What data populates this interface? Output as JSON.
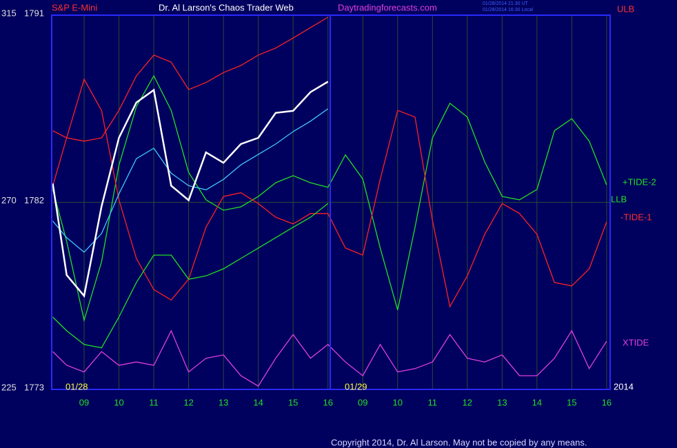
{
  "chart_data": {
    "type": "line",
    "title": "Dr. Al Larson's Chaos Trader Web",
    "instrument": "S&P E-Mini",
    "website": "Daytradingforecasts.com",
    "timestamps": [
      "01/28/2014 21:30 UT",
      "01/28/2014 16:30 Local"
    ],
    "dates": [
      "01/28",
      "01/29",
      "2014"
    ],
    "copyright": "Copyright 2014, Dr. Al Larson. May not be copied by any means.",
    "x": [
      8.1,
      8.5,
      9,
      9.5,
      10,
      10.5,
      11,
      11.5,
      12,
      12.5,
      13,
      13.5,
      14,
      14.5,
      15,
      15.5,
      16,
      16.5,
      17,
      17.5,
      18,
      18.5,
      19,
      19.5,
      20,
      20.5,
      21,
      21.5,
      22,
      22.5,
      23,
      23.5,
      24
    ],
    "xlim": [
      8.07,
      24.1
    ],
    "xticks": [
      {
        "value": 9,
        "label": "09"
      },
      10,
      11,
      12,
      13,
      14,
      15,
      16,
      {
        "value": 17,
        "label": "09"
      },
      {
        "value": 18,
        "label": "10"
      },
      {
        "value": 19,
        "label": "11"
      },
      {
        "value": 20,
        "label": "12"
      },
      {
        "value": 21,
        "label": "13"
      },
      {
        "value": 22,
        "label": "14"
      },
      {
        "value": 23,
        "label": "15"
      },
      {
        "value": 24,
        "label": "16"
      }
    ],
    "ylim": [
      225,
      315
    ],
    "yticks": [
      225,
      270,
      315
    ],
    "y2lim": [
      1773,
      1791
    ],
    "y2ticks": [
      1773,
      1782,
      1791
    ],
    "grid": true,
    "series": [
      {
        "name": "+TIDE-2",
        "color": "#22e022",
        "values": [
          273.1,
          260.6,
          241.6,
          255.7,
          278.9,
          293.0,
          300.4,
          292.1,
          277.2,
          270.6,
          268.1,
          268.9,
          271.4,
          274.7,
          276.4,
          274.7,
          273.6,
          281.4,
          275.6,
          259.0,
          244.1,
          264.0,
          285.5,
          293.8,
          290.5,
          279.7,
          271.4,
          270.6,
          273.1,
          287.2,
          290.1,
          284.7,
          274.2
        ]
      },
      {
        "name": "-TIDE-1",
        "color": "#ff2222",
        "values": [
          273.9,
          285.5,
          299.6,
          292.1,
          270.6,
          256.5,
          249.0,
          246.5,
          251.5,
          264.0,
          271.4,
          272.3,
          269.7,
          266.4,
          264.8,
          267.3,
          267.3,
          259.0,
          257.3,
          275.5,
          292.1,
          290.5,
          265.6,
          244.9,
          252.3,
          262.3,
          269.7,
          267.3,
          262.3,
          250.7,
          249.9,
          254.0,
          265.3
        ]
      },
      {
        "name": "XTIDE",
        "color": "#e040e0",
        "values": [
          234.1,
          230.8,
          229.2,
          234.1,
          230.8,
          231.6,
          230.8,
          239.1,
          229.2,
          232.5,
          233.3,
          228.3,
          225.8,
          232.5,
          238.2,
          232.5,
          235.8,
          231.6,
          228.3,
          235.8,
          229.2,
          230.0,
          231.6,
          238.2,
          232.5,
          231.6,
          233.3,
          228.3,
          228.3,
          232.5,
          239.1,
          230.0,
          236.6
        ]
      },
      {
        "name": "ULB",
        "color": "#ff2222",
        "values": [
          287.2,
          285.5,
          284.7,
          285.5,
          292.1,
          300.4,
          305.4,
          303.7,
          297.1,
          298.8,
          301.2,
          302.9,
          305.4,
          307.1,
          309.5,
          312.0,
          314.5,
          null,
          null,
          null,
          null,
          null,
          null,
          null,
          null,
          null,
          null,
          null,
          null,
          null,
          null,
          null,
          null
        ]
      },
      {
        "name": "LLB",
        "color": "#22e022",
        "values": [
          242.4,
          239.1,
          235.8,
          235.0,
          242.4,
          250.7,
          257.3,
          257.3,
          251.5,
          252.3,
          254.0,
          256.5,
          259.0,
          261.5,
          264.0,
          266.4,
          269.7,
          null,
          null,
          null,
          null,
          null,
          null,
          null,
          null,
          null,
          null,
          null,
          null,
          null,
          null,
          null,
          null
        ]
      },
      {
        "color": "#40c8ff",
        "axis": "y2",
        "values": [
          1781.1,
          1780.3,
          1779.6,
          1780.5,
          1782.4,
          1784.1,
          1784.6,
          1783.4,
          1782.8,
          1782.6,
          1783.1,
          1783.8,
          1784.3,
          1784.8,
          1785.4,
          1785.9,
          1786.5,
          null,
          null,
          null,
          null,
          null,
          null,
          null,
          null,
          null,
          null,
          null,
          null,
          null,
          null,
          null,
          null
        ]
      },
      {
        "color": "#ffffff",
        "axis": "y2",
        "values": [
          1782.9,
          1778.5,
          1777.5,
          1781.8,
          1785.1,
          1786.8,
          1787.4,
          1782.8,
          1782.1,
          1784.4,
          1783.9,
          1784.8,
          1785.1,
          1786.3,
          1786.4,
          1787.3,
          1787.8,
          null,
          null,
          null,
          null,
          null,
          null,
          null,
          null,
          null,
          null,
          null,
          null,
          null,
          null,
          null,
          null
        ]
      }
    ]
  }
}
